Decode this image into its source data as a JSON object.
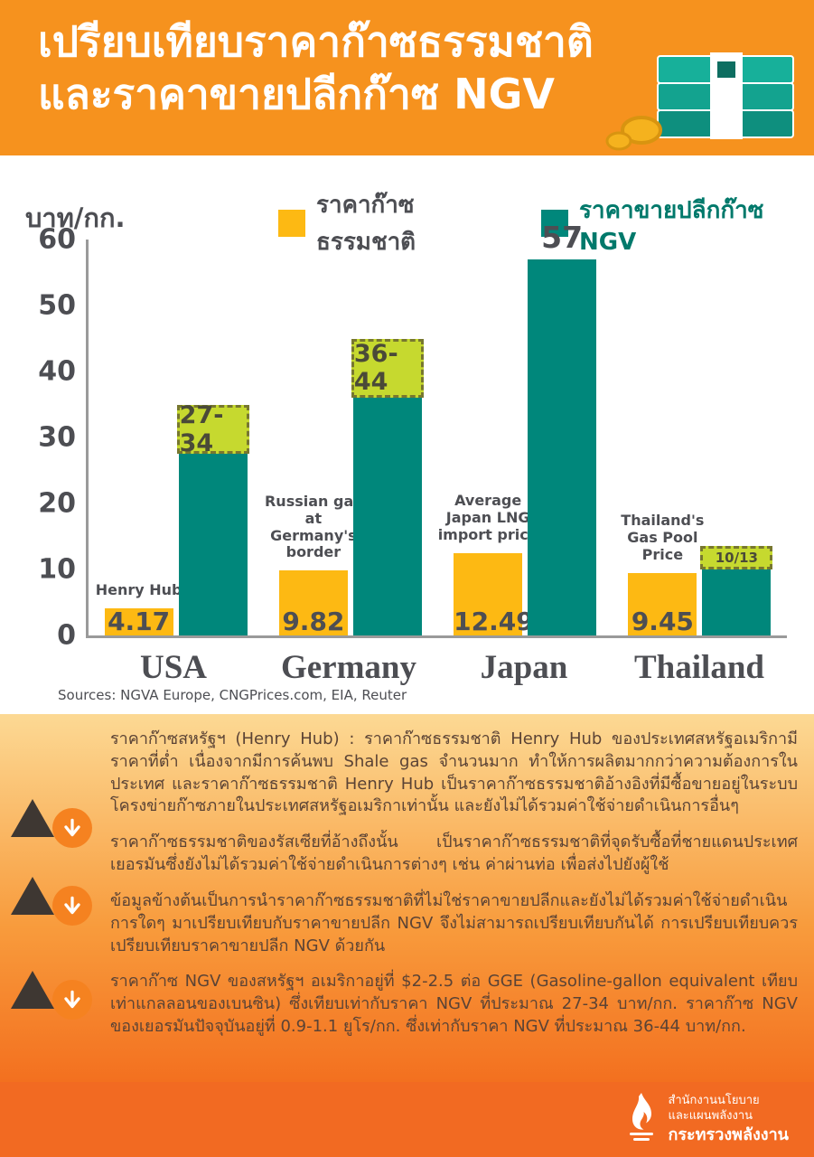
{
  "header": {
    "title_line1": "เปรียบเทียบราคาก๊าซธรรมชาติ",
    "title_line2": "และราคาขายปลีกก๊าซ NGV"
  },
  "chart": {
    "unit_label": "บาท/กก.",
    "legend": [
      {
        "label": "ราคาก๊าซธรรมชาติ",
        "color": "#FDB913",
        "text_color": "#4D4E53"
      },
      {
        "label": "ราคาขายปลีกก๊าซ NGV",
        "color": "#00877B",
        "text_color": "#00796B"
      }
    ],
    "y_ticks": [
      60,
      50,
      40,
      30,
      20,
      10,
      0
    ],
    "sources": "Sources: NGVA Europe, CNGPrices.com, EIA, Reuter"
  },
  "chart_data": {
    "type": "bar",
    "title": "เปรียบเทียบราคาก๊าซธรรมชาติและราคาขายปลีกก๊าซ NGV",
    "categories": [
      "USA",
      "Germany",
      "Japan",
      "Thailand"
    ],
    "xlabel": "",
    "ylabel": "บาท/กก.",
    "ylim": [
      0,
      60
    ],
    "grid": false,
    "legend_position": "top",
    "series": [
      {
        "name": "ราคาก๊าซธรรมชาติ",
        "color": "#FDB913",
        "values": [
          4.17,
          9.82,
          12.49,
          9.45
        ]
      },
      {
        "name": "ราคาขายปลีกก๊าซ NGV",
        "color": "#00877B",
        "values": [
          35,
          45,
          57,
          13.5
        ],
        "display_labels": [
          "27-34",
          "36-44",
          "57",
          "10/13"
        ]
      }
    ],
    "gas_value_labels": [
      "4.17",
      "9.82",
      "12.49",
      "9.45"
    ],
    "gas_annotations": [
      "Henry Hub",
      "Russian gas at Germany's border",
      "Average Japan LNG import price",
      "Thailand's Gas Pool Price"
    ],
    "ngv_labels": [
      "27-34",
      "36-44",
      "57",
      "10/13"
    ],
    "ngv_label_styles": [
      "box",
      "box",
      "text",
      "box-small"
    ],
    "ngv_box_spans": [
      [
        27.5,
        35
      ],
      [
        36,
        45
      ],
      null,
      [
        10,
        13.5
      ]
    ],
    "ngv_box_color": "#C6D92F"
  },
  "notes": {
    "items": [
      {
        "text": "ราคาก๊าซสหรัฐฯ (Henry Hub) : ราคาก๊าซธรรมชาติ Henry Hub ของประเทศสหรัฐอเมริกามีราคาที่ต่ำ เนื่องจากมีการค้นพบ Shale gas จำนวนมาก ทำให้การผลิตมากกว่าความต้องการในประเทศ และราคาก๊าซธรรมชาติ Henry Hub เป็นราคาก๊าซธรรมชาติอ้างอิงที่มีซื้อขายอยู่ในระบบโครงข่ายก๊าซภายในประเทศสหรัฐอเมริกาเท่านั้น และยังไม่ได้รวมค่าใช้จ่ายดำเนินการอื่นๆ"
      },
      {
        "text": "ราคาก๊าซธรรมชาติของรัสเซียที่อ้างถึงนั้น เป็นราคาก๊าซธรรมชาติที่จุดรับซื้อที่ชายแดนประเทศเยอรมันซึ่งยังไม่ได้รวมค่าใช้จ่ายดำเนินการต่างๆ เช่น ค่าผ่านท่อ เพื่อส่งไปยังผู้ใช้"
      },
      {
        "text": "ข้อมูลข้างต้นเป็นการนำราคาก๊าซธรรมชาติที่ไม่ใช่ราคาขายปลีกและยังไม่ได้รวมค่าใช้จ่ายดำเนินการใดๆ มาเปรียบเทียบกับราคาขายปลีก NGV จึงไม่สามารถเปรียบเทียบกันได้ การเปรียบเทียบควรเปรียบเทียบราคาขายปลีก NGV ด้วยกัน"
      },
      {
        "text": "ราคาก๊าซ NGV ของสหรัฐฯ อเมริกาอยู่ที่ $2-2.5 ต่อ GGE (Gasoline-gallon equivalent เทียบเท่าแกลลอนของเบนซิน) ซึ่งเทียบเท่ากับราคา NGV ที่ประมาณ 27-34 บาท/กก. ราคาก๊าซ NGV ของเยอรมันปัจจุบันอยู่ที่ 0.9-1.1 ยูโร/กก. ซึ่งเท่ากับราคา NGV ที่ประมาณ 36-44 บาท/กก."
      }
    ]
  },
  "footer": {
    "org_line1": "สำนักงานนโยบาย",
    "org_line2": "และแผนพลังงาน",
    "org_line3": "กระทรวงพลังงาน"
  },
  "icons": {
    "money_stack": "banknotes-and-coins-icon",
    "note_marker": "up-triangle-icon",
    "note_arrow": "down-arrow-circle-icon",
    "logo": "ministry-flame-logo-icon"
  },
  "colors": {
    "header_bg": "#F6921E",
    "gas_bar": "#FDB913",
    "ngv_bar": "#00877B",
    "range_box": "#C6D92F",
    "notes_gradient_top": "#FCD994",
    "notes_gradient_bottom": "#F3701F",
    "footer_bg": "#F26A22",
    "text_dark": "#4D4E53"
  }
}
